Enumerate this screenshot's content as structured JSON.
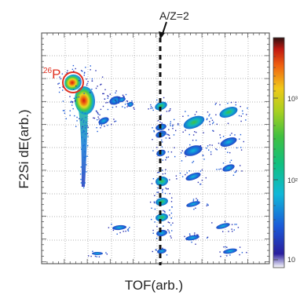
{
  "chart_data": {
    "type": "heatmap",
    "title": "",
    "xlabel": "TOF(arb.)",
    "ylabel": "F2Si dE(arb.)",
    "x_unit": "arb.",
    "y_unit": "arb.",
    "color_scale": {
      "type": "log",
      "min": 1,
      "max": 3000,
      "tick_values": [
        10,
        100,
        1000
      ],
      "tick_labels": [
        "10",
        "10²",
        "10³"
      ],
      "colormap": "rainbow (blue-cyan-green-yellow-orange-red-black)"
    },
    "grid": true,
    "grid_style": "dotted",
    "annotations": [
      {
        "name": "az2-line",
        "label": "A/Z=2",
        "style": "dashed vertical line with downward arrow"
      },
      {
        "name": "p26-marker",
        "label": "26P",
        "mass_number": "26",
        "element": "P",
        "style": "red circle",
        "color": "#e03020"
      }
    ]
  },
  "colors": {
    "marker": "#e03020",
    "dashed_line": "#111111",
    "grid": "#9a9a9a"
  }
}
